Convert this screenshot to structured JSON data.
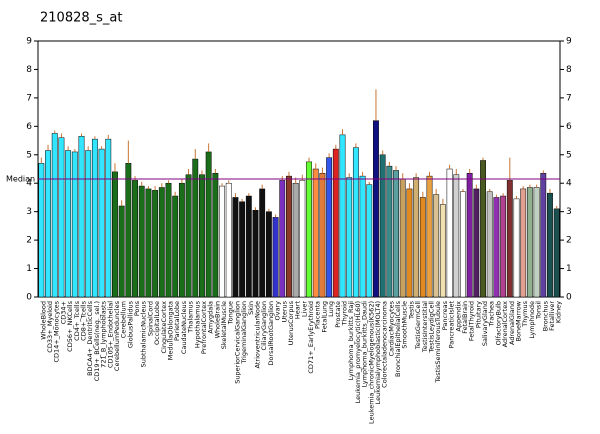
{
  "chart_data": {
    "type": "bar",
    "title": "210828_s_at",
    "categories": [
      "WholeBlood",
      "CD33+_Myeloid",
      "CD14+_Monocytes",
      "CD34+",
      "CD56+_NKCells",
      "CD4+_Tcells",
      "CD8+_Tcells",
      "BDCA4+_DentriticCells",
      "CD19+_BCells(neg._sel.)",
      "721_B_lymphoblasts",
      "CD105+_Endothelial",
      "CerebellumPeduncles",
      "Cerebellum",
      "GlobusPallidus",
      "Pons",
      "SubthalamicNucleus",
      "SpinalCord",
      "OccipitalLobe",
      "CingulateCortex",
      "MedullaOblongata",
      "ParietalLobe",
      "CaudateNucleus",
      "Thalamus",
      "Hypothalamus",
      "PrefrontalCortex",
      "Amygdala",
      "WholeBrain",
      "SkeletalMuscle",
      "Tongue",
      "SuperiorCervicalGanglion",
      "TrigeminalGanglion",
      "Skin",
      "AtrioventricularNode",
      "CiliaryGanglion",
      "DorsalRootGanglion",
      "Ovary",
      "Uterus",
      "UterusCorpus",
      "Heart",
      "Liver",
      "CD71+_EarlyErythroid",
      "Placenta",
      "FetalLung",
      "Lung",
      "Prostate",
      "Thyroid",
      "Lymphoma_burkitts_Raji",
      "Leukemia_promyelocytic(HL60)",
      "Lymphoma_burkitts_Daudi",
      "Leukemia_chronicMyelogenous(K562)",
      "Leukemialymphoblastic(MOLT4)",
      "Colorectaladenocarcinoma",
      "CardiacMyocytes",
      "BronchialEpithelialCells",
      "SmoothMuscle",
      "Testis",
      "TestisGermCell",
      "TestisInterstitial",
      "TestisLeydigCell",
      "TestisSeminiferousTubule",
      "Pancreas",
      "PancreaticIslet",
      "Appendix",
      "FetalBrain",
      "FetalThyroid",
      "Pituitary",
      "SalivaryGland",
      "Trachea",
      "OlfactoryBulb",
      "AdrenalCortex",
      "AdrenalGland",
      "BoneMarrow",
      "Thymus",
      "Lymphnode",
      "Tonsil",
      "Bronchus",
      "Fetalliver",
      "Kidney"
    ],
    "values": [
      4.7,
      5.15,
      5.75,
      5.6,
      5.15,
      5.1,
      5.65,
      5.15,
      5.55,
      5.2,
      5.55,
      4.4,
      3.2,
      4.7,
      4.1,
      3.9,
      3.8,
      3.75,
      3.85,
      4.0,
      3.55,
      4.0,
      4.3,
      4.85,
      4.3,
      5.1,
      4.35,
      3.9,
      4.0,
      3.5,
      3.35,
      3.55,
      3.05,
      3.8,
      3.0,
      2.8,
      4.1,
      4.25,
      4.0,
      4.1,
      4.75,
      4.5,
      4.35,
      4.9,
      5.2,
      5.7,
      4.2,
      5.25,
      4.25,
      3.95,
      6.2,
      5.0,
      4.6,
      4.45,
      4.15,
      3.8,
      4.2,
      3.5,
      4.25,
      3.6,
      3.25,
      4.5,
      4.3,
      3.7,
      4.35,
      3.8,
      4.8,
      3.7,
      3.5,
      3.55,
      4.1,
      3.45,
      3.8,
      3.85,
      3.85,
      4.35,
      3.65,
      3.1
    ],
    "errors": [
      0.2,
      0.2,
      0.1,
      0.15,
      0.15,
      0.1,
      0.1,
      0.15,
      0.1,
      0.1,
      0.15,
      0.3,
      0.2,
      0.8,
      0.15,
      0.15,
      0.1,
      0.15,
      0.15,
      0.1,
      0.15,
      0.15,
      0.2,
      0.35,
      0.15,
      0.3,
      0.15,
      0.1,
      0.1,
      0.15,
      0.1,
      0.1,
      0.1,
      0.15,
      0.1,
      0.1,
      0.15,
      0.15,
      0.2,
      0.2,
      0.15,
      0.2,
      0.2,
      0.15,
      0.15,
      0.2,
      0.15,
      0.15,
      0.15,
      0.1,
      1.1,
      0.15,
      0.15,
      0.15,
      0.2,
      0.2,
      0.15,
      0.2,
      0.15,
      0.2,
      0.2,
      0.15,
      0.2,
      0.1,
      0.15,
      0.15,
      0.1,
      0.1,
      0.1,
      0.1,
      0.8,
      0.1,
      0.1,
      0.1,
      0.1,
      0.1,
      0.15,
      0.1
    ],
    "colors": [
      "#33e6ff",
      "#33e6ff",
      "#33e6ff",
      "#33e6ff",
      "#33e6ff",
      "#33e6ff",
      "#33e6ff",
      "#33e6ff",
      "#33e6ff",
      "#33e6ff",
      "#33e6ff",
      "#1a6e1a",
      "#1a6e1a",
      "#1a6e1a",
      "#1a6e1a",
      "#1a6e1a",
      "#1a6e1a",
      "#1a6e1a",
      "#1a6e1a",
      "#1a6e1a",
      "#1a6e1a",
      "#1a6e1a",
      "#1a6e1a",
      "#1a6e1a",
      "#1a6e1a",
      "#1a6e1a",
      "#1a6e1a",
      "#ffffff",
      "#ffffff",
      "#111111",
      "#111111",
      "#111111",
      "#111111",
      "#111111",
      "#111111",
      "#3333cc",
      "#7a2fbf",
      "#8b3a2a",
      "#aaaaaa",
      "#ffffff",
      "#66ff33",
      "#ff8c40",
      "#e07b39",
      "#3355ee",
      "#dd2222",
      "#33e6ff",
      "#33e6ff",
      "#33e6ff",
      "#33e6ff",
      "#33e6ff",
      "#101080",
      "#207070",
      "#3a8a8a",
      "#5aa0a0",
      "#c8a060",
      "#e08a20",
      "#d0b070",
      "#e08a20",
      "#e8a040",
      "#d8c090",
      "#f0e0b0",
      "#ffffff",
      "#d0d0d0",
      "#ffffff",
      "#8020a0",
      "#502060",
      "#4a5a20",
      "#c0c0c0",
      "#9030b0",
      "#b04090",
      "#803030",
      "#ffffff",
      "#e0a090",
      "#90b090",
      "#c0d0c0",
      "#6040a0",
      "#1a5050",
      "#1a5050"
    ],
    "error_color": "#c87533",
    "median": 4.15,
    "median_label": "Median",
    "median_color": "#800080",
    "ylim": [
      0,
      9
    ],
    "yticks": [
      0,
      1,
      2,
      3,
      4,
      5,
      6,
      7,
      8,
      9
    ]
  }
}
